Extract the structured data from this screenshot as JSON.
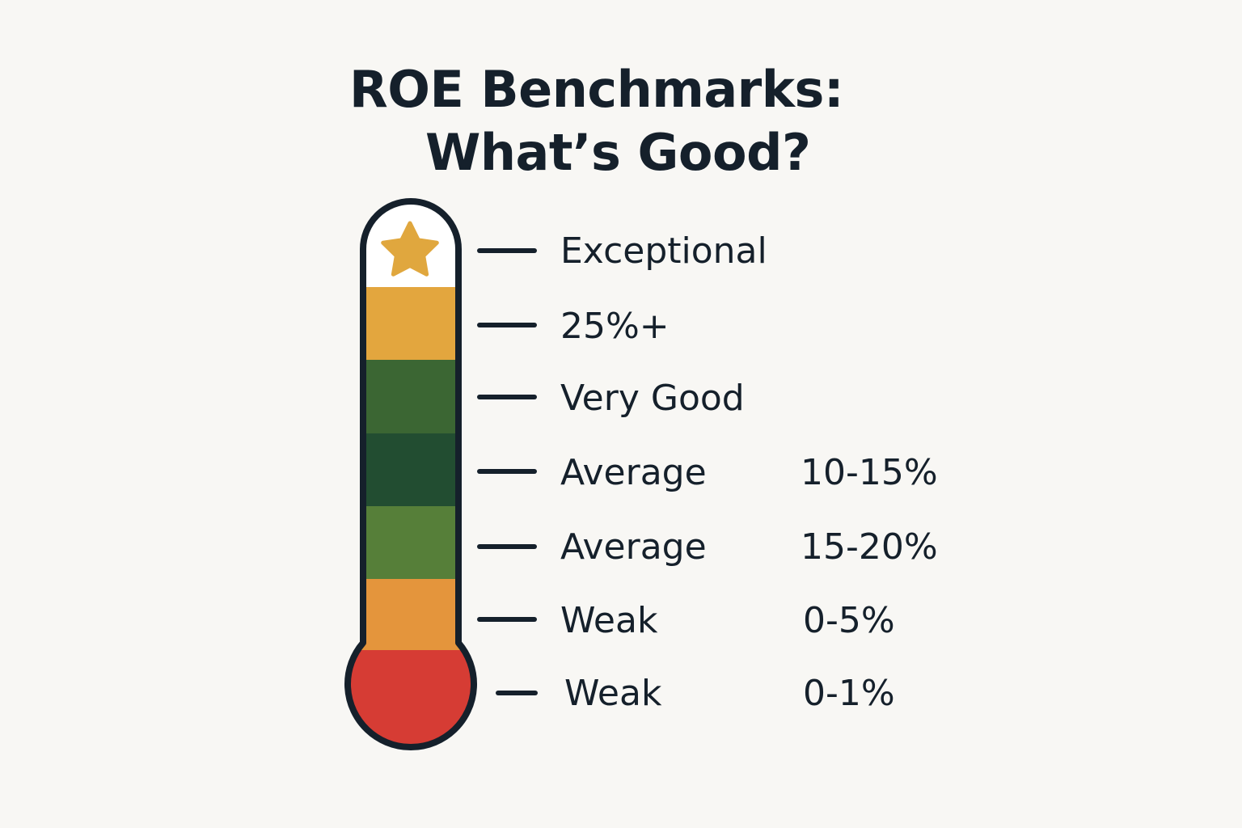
{
  "title": {
    "line1": "ROE Benchmarks:",
    "line2": "What’s Good?"
  },
  "colors": {
    "background": "#f8f7f4",
    "outline": "#15202b",
    "star": "#e0a73e",
    "gold": "#e3a63e",
    "dark_green": "#3b6633",
    "darkest_green": "#224d31",
    "light_green": "#567f39",
    "orange": "#e4953c",
    "red": "#d63c34"
  },
  "thermometer": {
    "top_icon": "star-icon",
    "segments": [
      "gold",
      "dark_green",
      "darkest_green",
      "light_green",
      "orange"
    ],
    "bulb": "red"
  },
  "benchmarks": [
    {
      "label": "Exceptional",
      "value": ""
    },
    {
      "label": "25%+",
      "value": ""
    },
    {
      "label": "Very Good",
      "value": ""
    },
    {
      "label": "Average",
      "value": "10-15%"
    },
    {
      "label": "Average",
      "value": "15-20%"
    },
    {
      "label": "Weak",
      "value": "0-5%"
    },
    {
      "label": "Weak",
      "value": "0-1%"
    }
  ]
}
